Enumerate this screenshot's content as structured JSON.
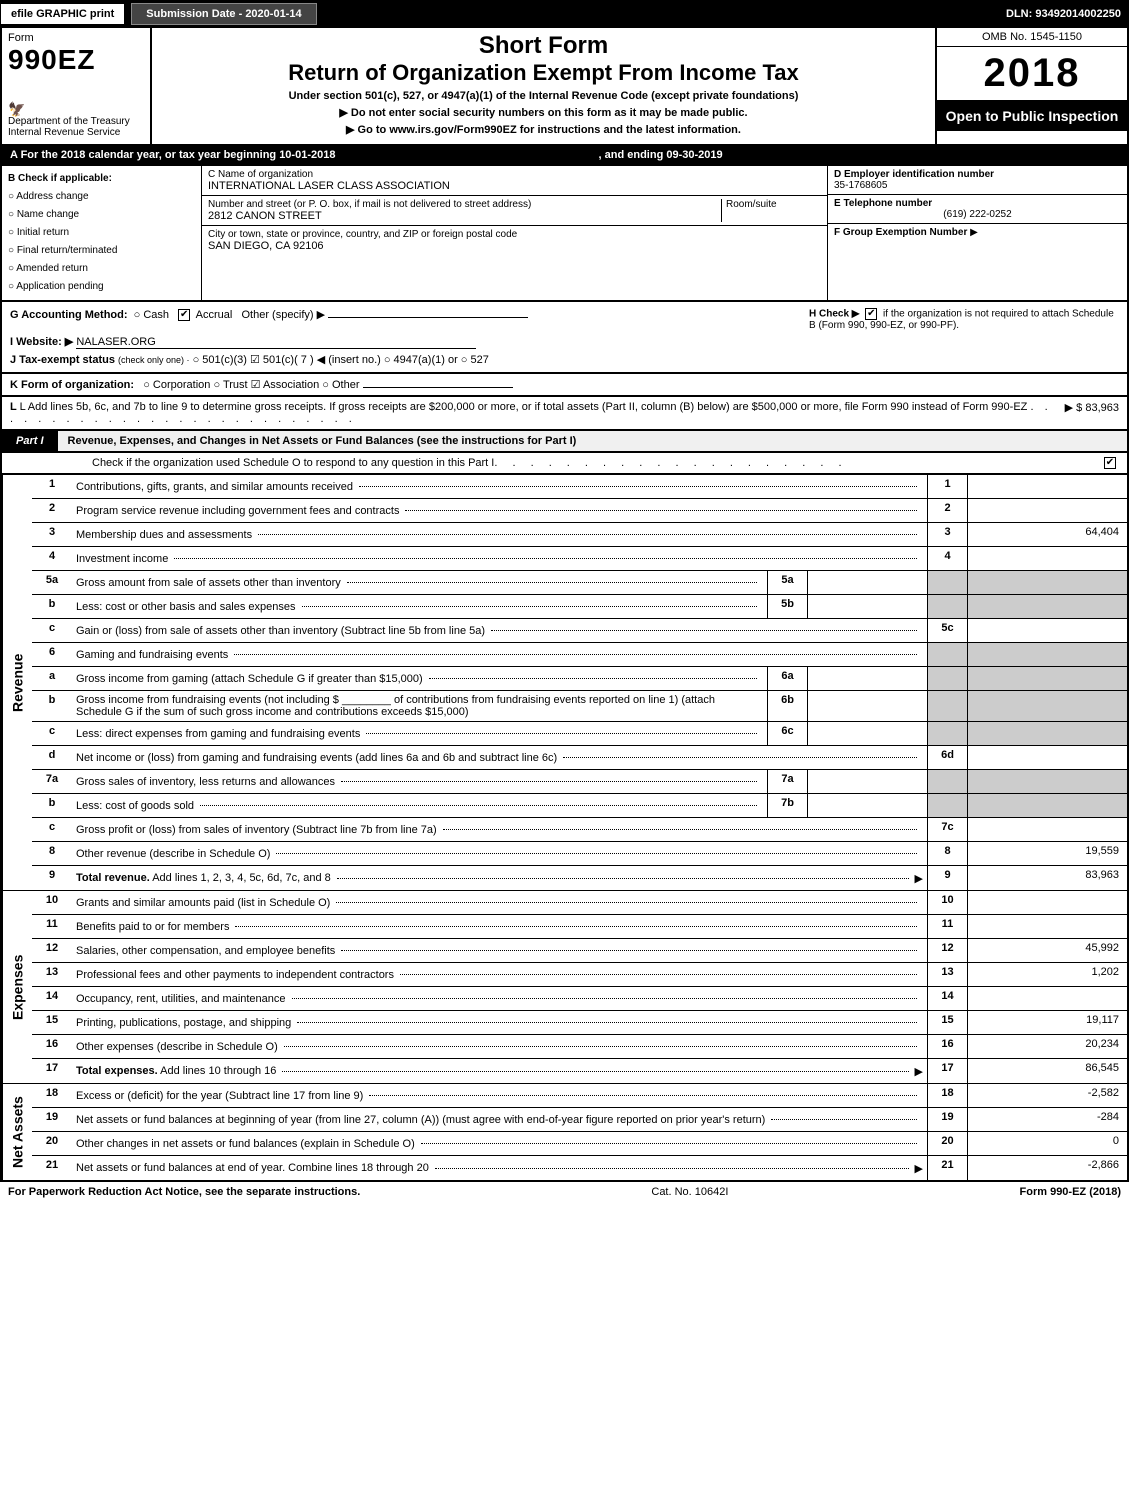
{
  "top": {
    "efile": "efile GRAPHIC print",
    "submission": "Submission Date - 2020-01-14",
    "dln": "DLN: 93492014002250"
  },
  "head": {
    "form_label": "Form",
    "form_no": "990EZ",
    "dept": "Department of the Treasury",
    "irs": "Internal Revenue Service",
    "title1": "Short Form",
    "title2": "Return of Organization Exempt From Income Tax",
    "sub1": "Under section 501(c), 527, or 4947(a)(1) of the Internal Revenue Code (except private foundations)",
    "sub2": "▶ Do not enter social security numbers on this form as it may be made public.",
    "sub3": "▶ Go to www.irs.gov/Form990EZ for instructions and the latest information.",
    "omb": "OMB No. 1545-1150",
    "year": "2018",
    "open": "Open to Public Inspection"
  },
  "rowA": {
    "text": "A For the 2018 calendar year, or tax year beginning 10-01-2018",
    "ending": ", and ending 09-30-2019"
  },
  "colB": {
    "header": "B Check if applicable:",
    "items": [
      "Address change",
      "Name change",
      "Initial return",
      "Final return/terminated",
      "Amended return",
      "Application pending"
    ]
  },
  "colC": {
    "name_label": "C Name of organization",
    "name_val": "INTERNATIONAL LASER CLASS ASSOCIATION",
    "street_label": "Number and street (or P. O. box, if mail is not delivered to street address)",
    "street_val": "2812 CANON STREET",
    "room_label": "Room/suite",
    "city_label": "City or town, state or province, country, and ZIP or foreign postal code",
    "city_val": "SAN DIEGO, CA  92106"
  },
  "colD": {
    "ein_label": "D Employer identification number",
    "ein_val": "35-1768605",
    "tel_label": "E Telephone number",
    "tel_val": "(619) 222-0252",
    "grp_label": "F Group Exemption Number",
    "grp_arrow": "▶"
  },
  "rowG": {
    "g_label": "G Accounting Method:",
    "g_cash": "Cash",
    "g_accrual": "Accrual",
    "g_other": "Other (specify) ▶",
    "h_label": "H  Check ▶",
    "h_text": "if the organization is not required to attach Schedule B (Form 990, 990-EZ, or 990-PF)."
  },
  "rowI": {
    "label": "I Website: ▶",
    "val": "NALASER.ORG"
  },
  "rowJ": {
    "label": "J Tax-exempt status",
    "sub": "(check only one) ·",
    "opts": "○ 501(c)(3)  ☑ 501(c)( 7 ) ◀ (insert no.)  ○ 4947(a)(1) or  ○ 527"
  },
  "rowK": {
    "label": "K Form of organization:",
    "opts": "○ Corporation   ○ Trust   ☑ Association   ○ Other"
  },
  "rowL": {
    "text": "L Add lines 5b, 6c, and 7b to line 9 to determine gross receipts. If gross receipts are $200,000 or more, or if total assets (Part II, column (B) below) are $500,000 or more, file Form 990 instead of Form 990-EZ",
    "arrow": "▶ $ 83,963"
  },
  "part1": {
    "label": "Part I",
    "title": "Revenue, Expenses, and Changes in Net Assets or Fund Balances (see the instructions for Part I)",
    "check_text": "Check if the organization used Schedule O to respond to any question in this Part I"
  },
  "sidebars": {
    "revenue": "Revenue",
    "expenses": "Expenses",
    "netassets": "Net Assets"
  },
  "lines": {
    "l1": {
      "n": "1",
      "d": "Contributions, gifts, grants, and similar amounts received",
      "ln": "1",
      "v": ""
    },
    "l2": {
      "n": "2",
      "d": "Program service revenue including government fees and contracts",
      "ln": "2",
      "v": ""
    },
    "l3": {
      "n": "3",
      "d": "Membership dues and assessments",
      "ln": "3",
      "v": "64,404"
    },
    "l4": {
      "n": "4",
      "d": "Investment income",
      "ln": "4",
      "v": ""
    },
    "l5a": {
      "n": "5a",
      "d": "Gross amount from sale of assets other than inventory",
      "sub": "5a",
      "sv": ""
    },
    "l5b": {
      "n": "b",
      "d": "Less: cost or other basis and sales expenses",
      "sub": "5b",
      "sv": ""
    },
    "l5c": {
      "n": "c",
      "d": "Gain or (loss) from sale of assets other than inventory (Subtract line 5b from line 5a)",
      "ln": "5c",
      "v": ""
    },
    "l6": {
      "n": "6",
      "d": "Gaming and fundraising events"
    },
    "l6a": {
      "n": "a",
      "d": "Gross income from gaming (attach Schedule G if greater than $15,000)",
      "sub": "6a",
      "sv": ""
    },
    "l6b": {
      "n": "b",
      "d": "Gross income from fundraising events (not including $ ________ of contributions from fundraising events reported on line 1) (attach Schedule G if the sum of such gross income and contributions exceeds $15,000)",
      "sub": "6b",
      "sv": ""
    },
    "l6c": {
      "n": "c",
      "d": "Less: direct expenses from gaming and fundraising events",
      "sub": "6c",
      "sv": ""
    },
    "l6d": {
      "n": "d",
      "d": "Net income or (loss) from gaming and fundraising events (add lines 6a and 6b and subtract line 6c)",
      "ln": "6d",
      "v": ""
    },
    "l7a": {
      "n": "7a",
      "d": "Gross sales of inventory, less returns and allowances",
      "sub": "7a",
      "sv": ""
    },
    "l7b": {
      "n": "b",
      "d": "Less: cost of goods sold",
      "sub": "7b",
      "sv": ""
    },
    "l7c": {
      "n": "c",
      "d": "Gross profit or (loss) from sales of inventory (Subtract line 7b from line 7a)",
      "ln": "7c",
      "v": ""
    },
    "l8": {
      "n": "8",
      "d": "Other revenue (describe in Schedule O)",
      "ln": "8",
      "v": "19,559"
    },
    "l9": {
      "n": "9",
      "d": "Total revenue. Add lines 1, 2, 3, 4, 5c, 6d, 7c, and 8",
      "ln": "9",
      "v": "83,963",
      "bold": true,
      "arrow": true
    },
    "l10": {
      "n": "10",
      "d": "Grants and similar amounts paid (list in Schedule O)",
      "ln": "10",
      "v": ""
    },
    "l11": {
      "n": "11",
      "d": "Benefits paid to or for members",
      "ln": "11",
      "v": ""
    },
    "l12": {
      "n": "12",
      "d": "Salaries, other compensation, and employee benefits",
      "ln": "12",
      "v": "45,992"
    },
    "l13": {
      "n": "13",
      "d": "Professional fees and other payments to independent contractors",
      "ln": "13",
      "v": "1,202"
    },
    "l14": {
      "n": "14",
      "d": "Occupancy, rent, utilities, and maintenance",
      "ln": "14",
      "v": ""
    },
    "l15": {
      "n": "15",
      "d": "Printing, publications, postage, and shipping",
      "ln": "15",
      "v": "19,117"
    },
    "l16": {
      "n": "16",
      "d": "Other expenses (describe in Schedule O)",
      "ln": "16",
      "v": "20,234"
    },
    "l17": {
      "n": "17",
      "d": "Total expenses. Add lines 10 through 16",
      "ln": "17",
      "v": "86,545",
      "bold": true,
      "arrow": true
    },
    "l18": {
      "n": "18",
      "d": "Excess or (deficit) for the year (Subtract line 17 from line 9)",
      "ln": "18",
      "v": "-2,582"
    },
    "l19": {
      "n": "19",
      "d": "Net assets or fund balances at beginning of year (from line 27, column (A)) (must agree with end-of-year figure reported on prior year's return)",
      "ln": "19",
      "v": "-284"
    },
    "l20": {
      "n": "20",
      "d": "Other changes in net assets or fund balances (explain in Schedule O)",
      "ln": "20",
      "v": "0"
    },
    "l21": {
      "n": "21",
      "d": "Net assets or fund balances at end of year. Combine lines 18 through 20",
      "ln": "21",
      "v": "-2,866",
      "arrow": true
    }
  },
  "footer": {
    "left": "For Paperwork Reduction Act Notice, see the separate instructions.",
    "center": "Cat. No. 10642I",
    "right": "Form 990-EZ (2018)"
  }
}
